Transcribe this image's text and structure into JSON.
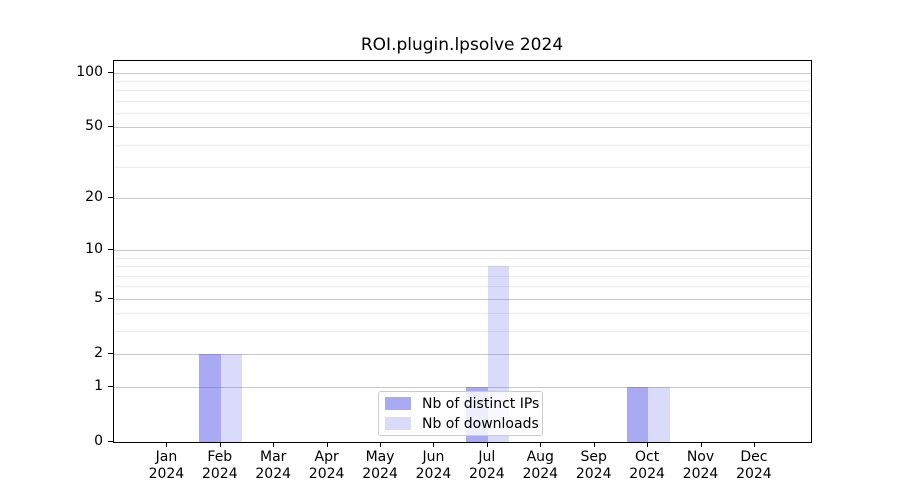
{
  "chart_data": {
    "type": "bar",
    "title": "ROI.plugin.lpsolve 2024",
    "categories": [
      "Jan",
      "Feb",
      "Mar",
      "Apr",
      "May",
      "Jun",
      "Jul",
      "Aug",
      "Sep",
      "Oct",
      "Nov",
      "Dec"
    ],
    "x_year": "2024",
    "series": [
      {
        "name": "Nb of distinct IPs",
        "color": "#5555e6",
        "alpha": 0.5,
        "solid_hex": "#aaaaf2",
        "values": [
          0,
          2,
          0,
          0,
          0,
          0,
          1,
          0,
          0,
          1,
          0,
          0
        ]
      },
      {
        "name": "Nb of downloads",
        "color": "#5555e6",
        "alpha": 0.22,
        "solid_hex": "#d9d9f8",
        "values": [
          0,
          2,
          0,
          0,
          0,
          0,
          8,
          0,
          0,
          1,
          0,
          0
        ]
      }
    ],
    "y_scale": "log1p",
    "y_ticks": [
      100,
      50,
      20,
      10,
      5,
      2,
      1,
      0
    ],
    "y_minor_ticks": [
      3,
      4,
      6,
      7,
      8,
      9,
      30,
      40,
      60,
      70,
      80,
      90
    ],
    "y_axis_max": 116,
    "ylim": [
      0,
      116
    ],
    "xlabel": "",
    "ylabel": "",
    "grid": "horizontal-major-and-minor",
    "legend_position": "lower center"
  },
  "colors": {
    "background": "#ffffff",
    "axis": "#000000",
    "grid_major": "#c8c8c8",
    "grid_minor": "#ececec",
    "legend_border": "#cccccc",
    "text": "#000000"
  }
}
